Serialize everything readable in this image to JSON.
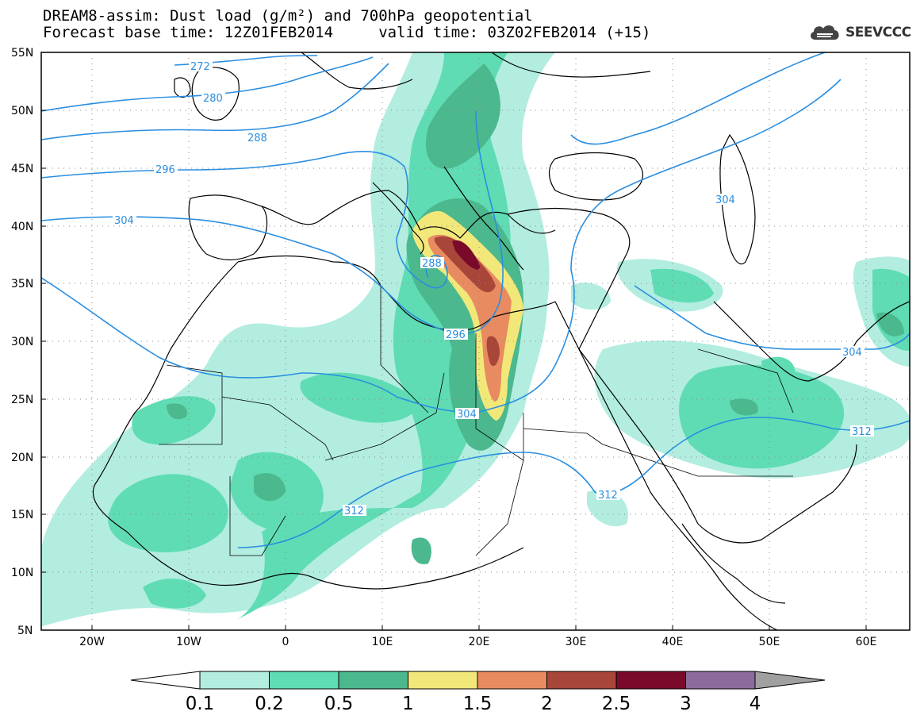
{
  "header": {
    "title_line1": "DREAM8-assim: Dust load (g/m²) and 700hPa geopotential",
    "title_line2": "Forecast base time: 12Z01FEB2014     valid time: 03Z02FEB2014 (+15)",
    "logo_text": "SEEVCCC"
  },
  "map": {
    "lat_labels": [
      "55N",
      "50N",
      "45N",
      "40N",
      "35N",
      "30N",
      "25N",
      "20N",
      "15N",
      "10N",
      "5N"
    ],
    "lon_labels": [
      "20W",
      "10W",
      "0",
      "10E",
      "20E",
      "30E",
      "40E",
      "50E",
      "60E"
    ],
    "contour_labels": [
      "272",
      "280",
      "288",
      "296",
      "304",
      "288",
      "296",
      "304",
      "312",
      "304",
      "312",
      "312",
      "304"
    ],
    "contour_color": "#2a8ee0",
    "coast_color": "#000000"
  },
  "colorbar": {
    "levels": [
      "0.1",
      "0.2",
      "0.5",
      "1",
      "1.5",
      "2",
      "2.5",
      "3",
      "4"
    ],
    "colors": [
      "#ffffff",
      "#b2ede0",
      "#5fdcb3",
      "#4cb88e",
      "#f2e87a",
      "#e88b60",
      "#a8463a",
      "#7a0a2a",
      "#8a6b9c",
      "#a0a0a0"
    ]
  },
  "chart_data": {
    "type": "heatmap",
    "title": "DREAM8-assim: Dust load (g/m²) and 700hPa geopotential",
    "x_ticks": [
      "20W",
      "10W",
      "0",
      "10E",
      "20E",
      "30E",
      "40E",
      "50E",
      "60E"
    ],
    "y_ticks": [
      "55N",
      "50N",
      "45N",
      "40N",
      "35N",
      "30N",
      "25N",
      "20N",
      "15N",
      "10N",
      "5N"
    ],
    "xlim": [
      -25,
      65
    ],
    "ylim": [
      5,
      55
    ],
    "dust_levels_g_m2": [
      0.1,
      0.2,
      0.5,
      1,
      1.5,
      2,
      2.5,
      3,
      4
    ],
    "geopotential_contours_dam": [
      272,
      280,
      288,
      296,
      304,
      312
    ]
  }
}
